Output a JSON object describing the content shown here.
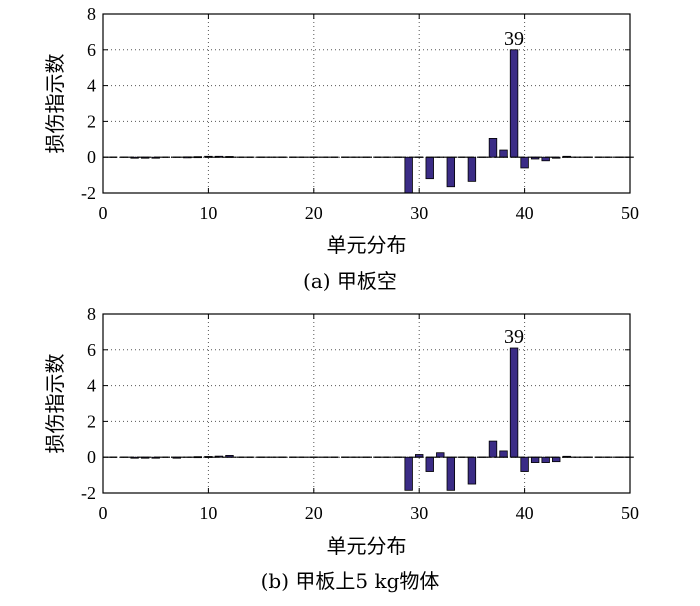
{
  "chart_data": [
    {
      "type": "bar",
      "caption": "(a) 甲板空",
      "xlabel": "单元分布",
      "ylabel": "损伤指示数",
      "xlim": [
        0,
        50
      ],
      "ylim": [
        -2,
        8
      ],
      "xticks": [
        0,
        10,
        20,
        30,
        40,
        50
      ],
      "yticks": [
        -2,
        0,
        2,
        4,
        6,
        8
      ],
      "grid": true,
      "bar_color": "#3b2c86",
      "annotation": {
        "text": "39",
        "x": 39,
        "y": 6.0
      },
      "series": [
        {
          "x": [
            1,
            2,
            3,
            4,
            5,
            6,
            7,
            8,
            9,
            10,
            11,
            12,
            13,
            14,
            15,
            16,
            17,
            18,
            19,
            20,
            21,
            22,
            23,
            24,
            25,
            26,
            27,
            28,
            29,
            30,
            31,
            32,
            33,
            34,
            35,
            36,
            37,
            38,
            39,
            40,
            41,
            42,
            43,
            44,
            45,
            46,
            47,
            48,
            49,
            50
          ],
          "values": [
            0,
            0,
            -0.03,
            -0.03,
            -0.02,
            0,
            0,
            0.02,
            0.03,
            0.05,
            0.05,
            0.04,
            0,
            0,
            0,
            0,
            0,
            0,
            0,
            0,
            0,
            0,
            0,
            0,
            0,
            0,
            0,
            0,
            -2.0,
            0,
            -1.2,
            0,
            -1.65,
            0,
            -1.35,
            0,
            1.05,
            0.4,
            6.0,
            -0.6,
            -0.1,
            -0.2,
            -0.05,
            0.05,
            0,
            0,
            0,
            0,
            0,
            0
          ]
        }
      ]
    },
    {
      "type": "bar",
      "caption": "(b) 甲板上5 kg物体",
      "xlabel": "单元分布",
      "ylabel": "损伤指示数",
      "xlim": [
        0,
        50
      ],
      "ylim": [
        -2,
        8
      ],
      "xticks": [
        0,
        10,
        20,
        30,
        40,
        50
      ],
      "yticks": [
        -2,
        0,
        2,
        4,
        6,
        8
      ],
      "grid": true,
      "bar_color": "#3b2c86",
      "annotation": {
        "text": "39",
        "x": 39,
        "y": 6.1
      },
      "series": [
        {
          "x": [
            1,
            2,
            3,
            4,
            5,
            6,
            7,
            8,
            9,
            10,
            11,
            12,
            13,
            14,
            15,
            16,
            17,
            18,
            19,
            20,
            21,
            22,
            23,
            24,
            25,
            26,
            27,
            28,
            29,
            30,
            31,
            32,
            33,
            34,
            35,
            36,
            37,
            38,
            39,
            40,
            41,
            42,
            43,
            44,
            45,
            46,
            47,
            48,
            49,
            50
          ],
          "values": [
            0,
            0,
            -0.02,
            -0.02,
            -0.02,
            0,
            -0.03,
            0,
            0.03,
            0.04,
            0.06,
            0.1,
            0,
            0,
            0,
            0,
            0,
            0,
            0,
            0,
            0,
            0,
            0,
            0,
            0,
            0,
            0,
            0,
            -1.85,
            0.15,
            -0.8,
            0.25,
            -1.85,
            0,
            -1.5,
            0,
            0.9,
            0.35,
            6.1,
            -0.8,
            -0.3,
            -0.3,
            -0.25,
            0.05,
            0,
            0,
            0,
            0,
            0,
            0
          ]
        }
      ]
    }
  ]
}
